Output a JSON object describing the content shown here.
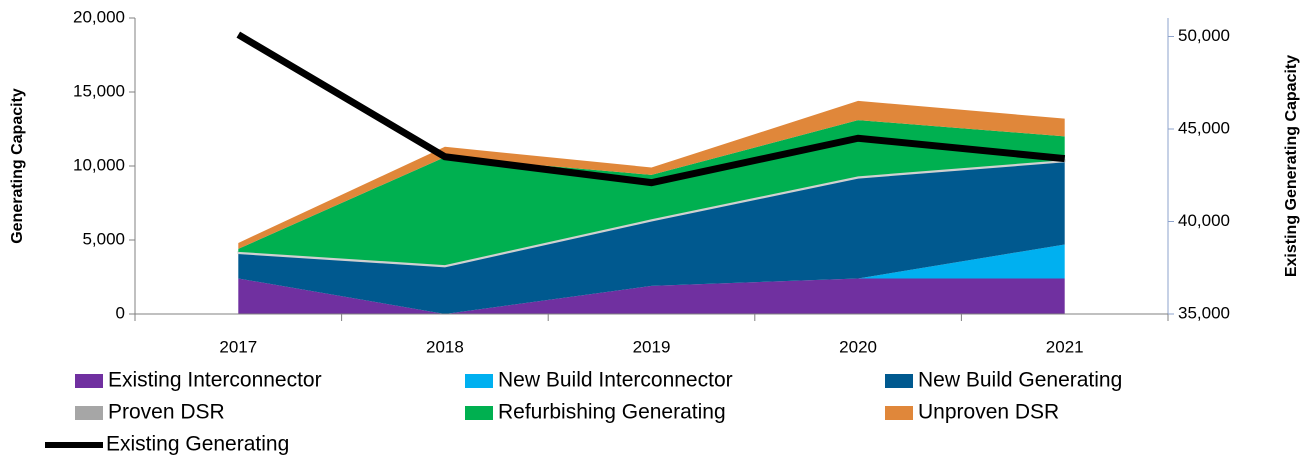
{
  "chart_data": {
    "type": "stacked_area_line",
    "y_label": "Generating Capacity",
    "y2_label": "Existing Generating Capacity",
    "categories": [
      "2017",
      "2018",
      "2019",
      "2020",
      "2021"
    ],
    "series": [
      {
        "name": "Existing Interconnector",
        "color": "#7030a0",
        "values": [
          2400,
          0,
          1900,
          2400,
          2400
        ]
      },
      {
        "name": "New Build Interconnector",
        "color": "#00b0f0",
        "values": [
          0,
          0,
          0,
          0,
          2300
        ]
      },
      {
        "name": "New Build Generating",
        "color": "#00598f",
        "values": [
          1700,
          3200,
          4400,
          6800,
          5600
        ]
      },
      {
        "name": "Proven DSR",
        "color": "#a6a6a6",
        "values": [
          100,
          100,
          100,
          100,
          100
        ]
      },
      {
        "name": "Refurbishing Generating",
        "color": "#00b050",
        "values": [
          200,
          7300,
          3000,
          3800,
          1600
        ]
      },
      {
        "name": "Unproven DSR",
        "color": "#e0873a",
        "values": [
          400,
          700,
          500,
          1300,
          1200
        ]
      },
      {
        "name": "Existing Generating",
        "color": "#000000",
        "axis": "y2",
        "values": [
          50100,
          43500,
          42100,
          44500,
          43400
        ]
      }
    ],
    "ylim": [
      0,
      20000
    ],
    "yticks": [
      0,
      {
        "value": 5000,
        "label": "5,000"
      },
      {
        "value": 10000,
        "label": "10,000"
      },
      {
        "value": 15000,
        "label": "15,000"
      },
      {
        "value": 20000,
        "label": "20,000"
      }
    ],
    "y2lim": [
      35000,
      51000
    ],
    "y2ticks": [
      {
        "value": 35000,
        "label": "35,000"
      },
      {
        "value": 40000,
        "label": "40,000"
      },
      {
        "value": 45000,
        "label": "45,000"
      },
      {
        "value": 50000,
        "label": "50,000"
      }
    ]
  }
}
